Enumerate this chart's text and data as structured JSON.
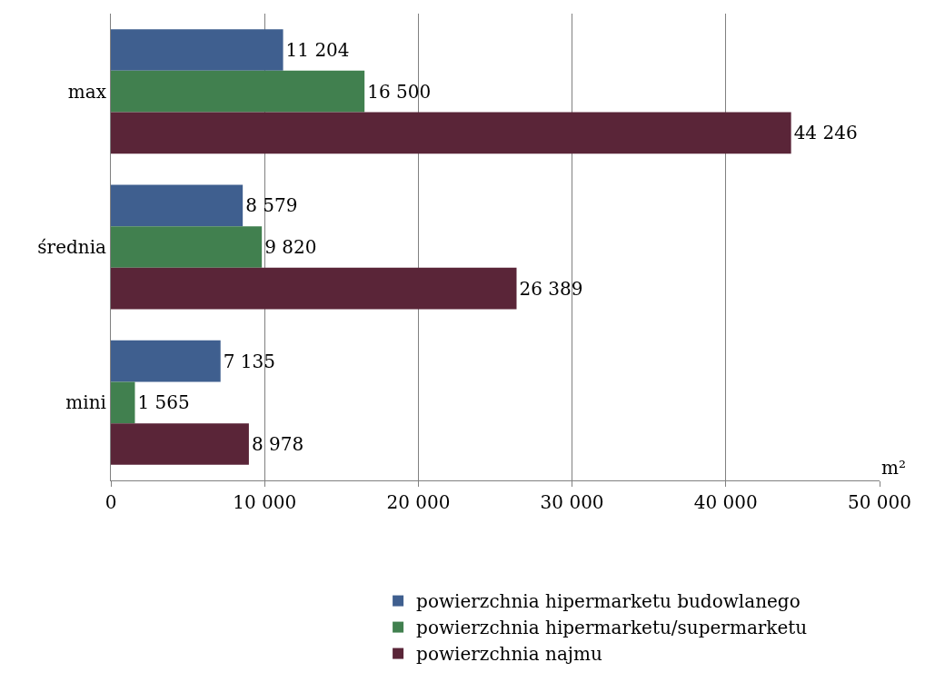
{
  "chart_data": {
    "type": "bar",
    "orientation": "horizontal",
    "categories": [
      "max",
      "średnia",
      "mini"
    ],
    "series": [
      {
        "name": "powierzchnia hipermarketu budowlanego",
        "color": "#3f5f8f",
        "values": [
          11204,
          8579,
          7135
        ],
        "value_labels": [
          "11 204",
          "8 579",
          "7 135"
        ]
      },
      {
        "name": "powierzchnia hipermarketu/supermarketu",
        "color": "#41804f",
        "values": [
          16500,
          9820,
          1565
        ],
        "value_labels": [
          "16 500",
          "9 820",
          "1 565"
        ]
      },
      {
        "name": "powierzchnia najmu",
        "color": "#5a2538",
        "values": [
          44246,
          26389,
          8978
        ],
        "value_labels": [
          "44 246",
          "26 389",
          "8 978"
        ]
      }
    ],
    "xlim": [
      0,
      50000
    ],
    "xticks": [
      {
        "value": 0,
        "label": "0"
      },
      {
        "value": 10000,
        "label": "10 000"
      },
      {
        "value": 20000,
        "label": "20 000"
      },
      {
        "value": 30000,
        "label": "30 000"
      },
      {
        "value": 40000,
        "label": "40 000"
      },
      {
        "value": 50000,
        "label": "50 000"
      }
    ],
    "grid": "x",
    "legend": "bottom",
    "annotations": [
      "m²"
    ]
  }
}
